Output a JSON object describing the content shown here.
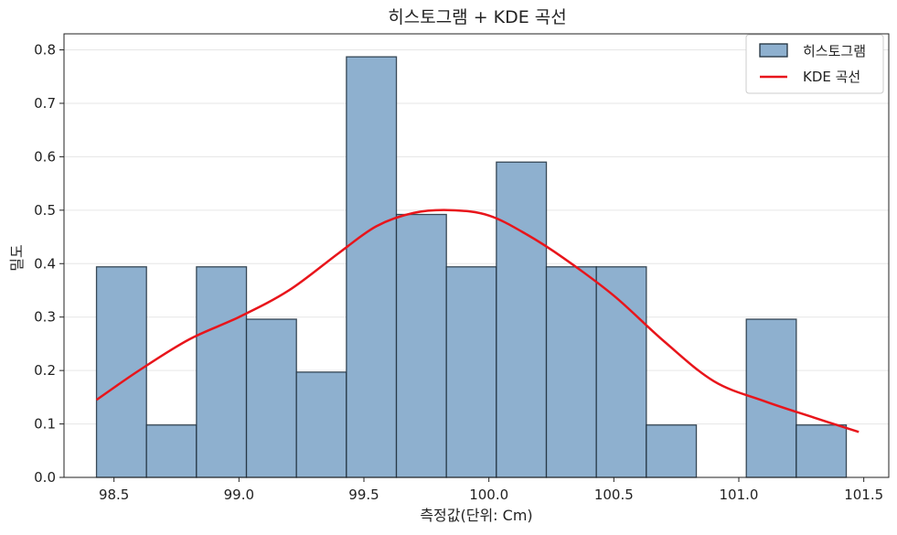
{
  "chart_data": {
    "type": "bar",
    "title": "히스토그램 + KDE 곡선",
    "xlabel": "측정값(단위: Cm)",
    "ylabel": "밀도",
    "xlim": [
      98.3,
      101.6
    ],
    "ylim": [
      0.0,
      0.83
    ],
    "xticks": [
      98.5,
      99.0,
      99.5,
      100.0,
      100.5,
      101.0,
      101.5
    ],
    "xtick_labels": [
      "98.5",
      "99.0",
      "99.5",
      "100.0",
      "100.5",
      "101.0",
      "101.5"
    ],
    "yticks": [
      0.0,
      0.1,
      0.2,
      0.3,
      0.4,
      0.5,
      0.6,
      0.7,
      0.8
    ],
    "ytick_labels": [
      "0.0",
      "0.1",
      "0.2",
      "0.3",
      "0.4",
      "0.5",
      "0.6",
      "0.7",
      "0.8"
    ],
    "grid": "horizontal",
    "legend_position": "top-right",
    "series": [
      {
        "name": "히스토그램",
        "kind": "histogram",
        "color": "#8eb0cf",
        "edge_color": "#1f2f3d",
        "bin_start": 98.43,
        "bin_width": 0.2,
        "values": [
          0.394,
          0.098,
          0.394,
          0.296,
          0.197,
          0.787,
          0.492,
          0.394,
          0.59,
          0.394,
          0.394,
          0.098,
          0.0,
          0.296,
          0.098
        ]
      },
      {
        "name": "KDE 곡선",
        "kind": "line",
        "color": "#e8151b",
        "x": [
          98.43,
          98.6,
          98.8,
          99.0,
          99.2,
          99.4,
          99.55,
          99.7,
          99.85,
          100.0,
          100.15,
          100.3,
          100.5,
          100.7,
          100.9,
          101.1,
          101.3,
          101.48
        ],
        "y": [
          0.145,
          0.2,
          0.258,
          0.3,
          0.35,
          0.42,
          0.47,
          0.495,
          0.5,
          0.49,
          0.455,
          0.41,
          0.34,
          0.255,
          0.18,
          0.143,
          0.112,
          0.085
        ]
      }
    ]
  }
}
